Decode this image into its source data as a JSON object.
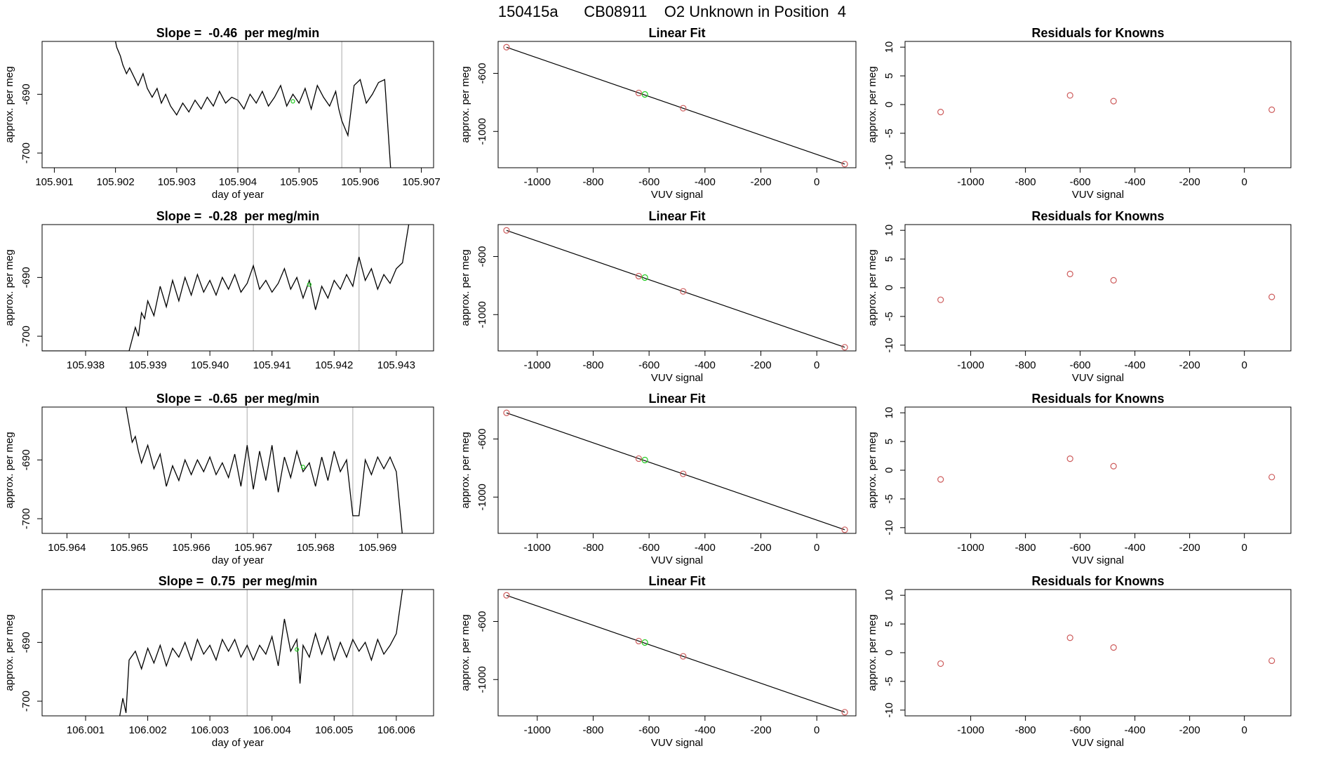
{
  "figure_title": "150415a      CB08911    O2 Unknown in Position  4",
  "colors": {
    "line": "#000000",
    "known": "#cd5c5c",
    "unknown": "#22cc22",
    "vline": "#bebebe",
    "axis": "#000000"
  },
  "chart_data": [
    {
      "type": "line",
      "title": "Slope =  -0.46  per meg/min",
      "xlabel": "day of year",
      "ylabel": "approx. per meg",
      "xlim": [
        105.9008,
        105.9072
      ],
      "ylim": [
        -702.5,
        -681
      ],
      "xticks": [
        "105.901",
        "105.902",
        "105.903",
        "105.904",
        "105.905",
        "105.906",
        "105.907"
      ],
      "yticks": [
        "-690",
        "-700"
      ],
      "vlines": [
        105.904,
        105.9057
      ],
      "unknown_point": {
        "x": 105.9049,
        "y": -691.2
      },
      "series": [
        {
          "name": "trace",
          "x": [
            105.902,
            105.90202,
            105.90208,
            105.90212,
            105.90218,
            105.90223,
            105.9023,
            105.90237,
            105.90245,
            105.90252,
            105.9026,
            105.90268,
            105.90275,
            105.90282,
            105.9029,
            105.903,
            105.9031,
            105.9032,
            105.9033,
            105.9034,
            105.9035,
            105.9036,
            105.9037,
            105.9038,
            105.9039,
            105.904,
            105.9041,
            105.9042,
            105.9043,
            105.9044,
            105.9045,
            105.9046,
            105.9047,
            105.9048,
            105.9049,
            105.905,
            105.9051,
            105.9052,
            105.9053,
            105.9054,
            105.9055,
            105.9056,
            105.90565,
            105.9057,
            105.9058,
            105.9059,
            105.906,
            105.9061,
            105.9062,
            105.9063,
            105.9064,
            105.9065
          ],
          "values": [
            -681,
            -682,
            -683.5,
            -685,
            -686.5,
            -685.5,
            -687,
            -688.5,
            -686.5,
            -689,
            -690.5,
            -689,
            -691.5,
            -690,
            -692,
            -693.5,
            -691.5,
            -693,
            -691,
            -692.5,
            -690.5,
            -692,
            -689.5,
            -691.5,
            -690.5,
            -691,
            -692.5,
            -690,
            -691.5,
            -689.5,
            -692,
            -690.5,
            -688.5,
            -692,
            -690,
            -691.5,
            -689,
            -692.5,
            -688.5,
            -690.5,
            -692,
            -689.5,
            -692.5,
            -694.5,
            -697,
            -688.5,
            -687.5,
            -691.5,
            -690,
            -688,
            -687.5,
            -703
          ]
        }
      ]
    },
    {
      "type": "scatter",
      "title": "Linear Fit",
      "xlabel": "VUV signal",
      "ylabel": "approx. per meg",
      "xlim": [
        -1140,
        140
      ],
      "ylim": [
        -1250,
        -380
      ],
      "xticks": [
        "-1000",
        "-800",
        "-600",
        "-400",
        "-200",
        "0"
      ],
      "yticks": [
        "-600",
        "-1000"
      ],
      "fit_line": {
        "x": [
          -1110,
          100
        ],
        "y": [
          -420,
          -1225
        ]
      },
      "knowns": {
        "x": [
          -1110,
          -637,
          -478,
          100
        ],
        "y": [
          -420,
          -735,
          -840,
          -1225
        ]
      },
      "unknown": {
        "x": -615,
        "y": -745
      }
    },
    {
      "type": "scatter",
      "title": "Residuals for Knowns",
      "xlabel": "VUV signal",
      "ylabel": "approx. per meg",
      "xlim": [
        -1240,
        170
      ],
      "ylim": [
        -11,
        11
      ],
      "xticks": [
        "-1000",
        "-800",
        "-600",
        "-400",
        "-200",
        "0"
      ],
      "yticks": [
        "-10",
        "-5",
        "0",
        "5",
        "10"
      ],
      "points": {
        "x": [
          -1110,
          -637,
          -478,
          100
        ],
        "y": [
          -1.3,
          1.6,
          0.6,
          -0.9
        ]
      }
    },
    {
      "type": "line",
      "title": "Slope =  -0.28  per meg/min",
      "xlabel": "",
      "ylabel": "approx. per meg",
      "xlim": [
        105.9373,
        105.9436
      ],
      "ylim": [
        -702.5,
        -681
      ],
      "xticks": [
        "105.938",
        "105.939",
        "105.940",
        "105.941",
        "105.942",
        "105.943"
      ],
      "yticks": [
        "-690",
        "-700"
      ],
      "vlines": [
        105.9407,
        105.9424
      ],
      "unknown_point": {
        "x": 105.9416,
        "y": -691.2
      },
      "series": [
        {
          "name": "trace",
          "x": [
            105.9373,
            105.9387,
            105.9388,
            105.93885,
            105.9389,
            105.93895,
            105.939,
            105.9391,
            105.9392,
            105.9393,
            105.9394,
            105.9395,
            105.9396,
            105.9397,
            105.9398,
            105.9399,
            105.94,
            105.9401,
            105.9402,
            105.9403,
            105.9404,
            105.9405,
            105.9406,
            105.9407,
            105.9408,
            105.9409,
            105.941,
            105.9411,
            105.9412,
            105.9413,
            105.9414,
            105.9415,
            105.9416,
            105.9417,
            105.9418,
            105.9419,
            105.942,
            105.9421,
            105.9422,
            105.9423,
            105.9424,
            105.9425,
            105.9426,
            105.9427,
            105.9428,
            105.9429,
            105.943,
            105.9431,
            105.9432
          ],
          "values": [
            -702.5,
            -702.5,
            -698.5,
            -700,
            -696,
            -697,
            -694,
            -696.5,
            -691.5,
            -695,
            -690.5,
            -694,
            -690,
            -693,
            -689.5,
            -692.5,
            -690.5,
            -693,
            -690,
            -692,
            -689.5,
            -692.5,
            -691,
            -688,
            -692,
            -690.5,
            -692.5,
            -691,
            -688.5,
            -692,
            -690,
            -693.5,
            -690.5,
            -695.5,
            -691.5,
            -693.5,
            -690.5,
            -692,
            -689.5,
            -691.5,
            -686.5,
            -690.5,
            -688.5,
            -692,
            -689.5,
            -691,
            -688.5,
            -687.5,
            -681
          ]
        }
      ]
    },
    {
      "type": "scatter",
      "title": "Linear Fit",
      "xlabel": "VUV signal",
      "ylabel": "approx. per meg",
      "xlim": [
        -1140,
        140
      ],
      "ylim": [
        -1250,
        -380
      ],
      "xticks": [
        "-1000",
        "-800",
        "-600",
        "-400",
        "-200",
        "0"
      ],
      "yticks": [
        "-600",
        "-1000"
      ],
      "fit_line": {
        "x": [
          -1110,
          100
        ],
        "y": [
          -420,
          -1225
        ]
      },
      "knowns": {
        "x": [
          -1110,
          -637,
          -478,
          100
        ],
        "y": [
          -420,
          -735,
          -840,
          -1225
        ]
      },
      "unknown": {
        "x": -615,
        "y": -745
      }
    },
    {
      "type": "scatter",
      "title": "Residuals for Knowns",
      "xlabel": "VUV signal",
      "ylabel": "approx. per meg",
      "xlim": [
        -1240,
        170
      ],
      "ylim": [
        -11,
        11
      ],
      "xticks": [
        "-1000",
        "-800",
        "-600",
        "-400",
        "-200",
        "0"
      ],
      "yticks": [
        "-10",
        "-5",
        "0",
        "5",
        "10"
      ],
      "points": {
        "x": [
          -1110,
          -637,
          -478,
          100
        ],
        "y": [
          -2.1,
          2.4,
          1.3,
          -1.6
        ]
      }
    },
    {
      "type": "line",
      "title": "Slope =  -0.65  per meg/min",
      "xlabel": "day of year",
      "ylabel": "approx. per meg",
      "xlim": [
        105.9636,
        105.9699
      ],
      "ylim": [
        -702.5,
        -681
      ],
      "xticks": [
        "105.964",
        "105.965",
        "105.966",
        "105.967",
        "105.968",
        "105.969"
      ],
      "yticks": [
        "-690",
        "-700"
      ],
      "vlines": [
        105.9669,
        105.9686
      ],
      "unknown_point": {
        "x": 105.9678,
        "y": -691.2
      },
      "series": [
        {
          "name": "trace",
          "x": [
            105.96495,
            105.96505,
            105.9651,
            105.96515,
            105.9652,
            105.9653,
            105.9654,
            105.9655,
            105.9656,
            105.9657,
            105.9658,
            105.9659,
            105.966,
            105.9661,
            105.9662,
            105.9663,
            105.9664,
            105.9665,
            105.9666,
            105.9667,
            105.9668,
            105.9669,
            105.967,
            105.9671,
            105.9672,
            105.9673,
            105.9674,
            105.9675,
            105.9676,
            105.9677,
            105.9678,
            105.9679,
            105.968,
            105.9681,
            105.9682,
            105.9683,
            105.9684,
            105.9685,
            105.9686,
            105.9687,
            105.9688,
            105.9689,
            105.969,
            105.9691,
            105.9692,
            105.9693,
            105.9694
          ],
          "values": [
            -681,
            -687,
            -686,
            -688.5,
            -690.5,
            -687.5,
            -691.5,
            -689,
            -694.5,
            -691,
            -693.5,
            -690,
            -692.5,
            -690,
            -692,
            -689.5,
            -692.5,
            -690.5,
            -693,
            -689,
            -694.5,
            -687.5,
            -695,
            -688.5,
            -693.5,
            -687.5,
            -695.5,
            -689.5,
            -693,
            -688.5,
            -692,
            -690.5,
            -694.5,
            -689.5,
            -693.5,
            -688.5,
            -692,
            -690,
            -699.5,
            -699.5,
            -690,
            -692.5,
            -689.5,
            -691.5,
            -689.5,
            -692,
            -703
          ]
        }
      ]
    },
    {
      "type": "scatter",
      "title": "Linear Fit",
      "xlabel": "VUV signal",
      "ylabel": "approx. per meg",
      "xlim": [
        -1140,
        140
      ],
      "ylim": [
        -1250,
        -380
      ],
      "xticks": [
        "-1000",
        "-800",
        "-600",
        "-400",
        "-200",
        "0"
      ],
      "yticks": [
        "-600",
        "-1000"
      ],
      "fit_line": {
        "x": [
          -1110,
          100
        ],
        "y": [
          -420,
          -1225
        ]
      },
      "knowns": {
        "x": [
          -1110,
          -637,
          -478,
          100
        ],
        "y": [
          -420,
          -735,
          -840,
          -1225
        ]
      },
      "unknown": {
        "x": -615,
        "y": -745
      }
    },
    {
      "type": "scatter",
      "title": "Residuals for Knowns",
      "xlabel": "VUV signal",
      "ylabel": "approx. per meg",
      "xlim": [
        -1240,
        170
      ],
      "ylim": [
        -11,
        11
      ],
      "xticks": [
        "-1000",
        "-800",
        "-600",
        "-400",
        "-200",
        "0"
      ],
      "yticks": [
        "-10",
        "-5",
        "0",
        "5",
        "10"
      ],
      "points": {
        "x": [
          -1110,
          -637,
          -478,
          100
        ],
        "y": [
          -1.6,
          2.0,
          0.7,
          -1.2
        ]
      }
    },
    {
      "type": "line",
      "title": "Slope =  0.75  per meg/min",
      "xlabel": "day of year",
      "ylabel": "approx. per meg",
      "xlim": [
        106.0003,
        106.0066
      ],
      "ylim": [
        -702.5,
        -681
      ],
      "xticks": [
        "106.001",
        "106.002",
        "106.003",
        "106.004",
        "106.005",
        "106.006"
      ],
      "yticks": [
        "-690",
        "-700"
      ],
      "vlines": [
        106.0036,
        106.0053
      ],
      "unknown_point": {
        "x": 106.0044,
        "y": -691.2
      },
      "series": [
        {
          "name": "trace",
          "x": [
            106.00155,
            106.0016,
            106.00165,
            106.0017,
            106.0018,
            106.0019,
            106.002,
            106.0021,
            106.0022,
            106.0023,
            106.0024,
            106.0025,
            106.0026,
            106.0027,
            106.0028,
            106.0029,
            106.003,
            106.0031,
            106.0032,
            106.0033,
            106.0034,
            106.0035,
            106.0036,
            106.0037,
            106.0038,
            106.0039,
            106.004,
            106.0041,
            106.0042,
            106.0043,
            106.0044,
            106.00445,
            106.0045,
            106.0046,
            106.0047,
            106.0048,
            106.0049,
            106.005,
            106.0051,
            106.0052,
            106.0053,
            106.0054,
            106.0055,
            106.0056,
            106.0057,
            106.0058,
            106.0059,
            106.006,
            106.0061
          ],
          "values": [
            -702.5,
            -699.5,
            -702,
            -693,
            -691.5,
            -694.5,
            -691,
            -693.5,
            -690.5,
            -694,
            -691,
            -692.5,
            -690,
            -693,
            -689.5,
            -692,
            -690.5,
            -693,
            -689.5,
            -691.5,
            -689.5,
            -692.5,
            -690.5,
            -693,
            -690.5,
            -692,
            -689,
            -694,
            -686,
            -691.5,
            -689.5,
            -697,
            -690.5,
            -692.5,
            -688.5,
            -692,
            -689,
            -693,
            -690,
            -692.5,
            -689.5,
            -691.5,
            -690,
            -693,
            -689.5,
            -692,
            -690.5,
            -688.5,
            -681
          ]
        }
      ]
    },
    {
      "type": "scatter",
      "title": "Linear Fit",
      "xlabel": "VUV signal",
      "ylabel": "approx. per meg",
      "xlim": [
        -1140,
        140
      ],
      "ylim": [
        -1250,
        -380
      ],
      "xticks": [
        "-1000",
        "-800",
        "-600",
        "-400",
        "-200",
        "0"
      ],
      "yticks": [
        "-600",
        "-1000"
      ],
      "fit_line": {
        "x": [
          -1110,
          100
        ],
        "y": [
          -420,
          -1225
        ]
      },
      "knowns": {
        "x": [
          -1110,
          -637,
          -478,
          100
        ],
        "y": [
          -420,
          -735,
          -840,
          -1225
        ]
      },
      "unknown": {
        "x": -615,
        "y": -745
      }
    },
    {
      "type": "scatter",
      "title": "Residuals for Knowns",
      "xlabel": "VUV signal",
      "ylabel": "approx. per meg",
      "xlim": [
        -1240,
        170
      ],
      "ylim": [
        -11,
        11
      ],
      "xticks": [
        "-1000",
        "-800",
        "-600",
        "-400",
        "-200",
        "0"
      ],
      "yticks": [
        "-10",
        "-5",
        "0",
        "5",
        "10"
      ],
      "points": {
        "x": [
          -1110,
          -637,
          -478,
          100
        ],
        "y": [
          -1.9,
          2.6,
          0.9,
          -1.4
        ]
      }
    }
  ]
}
